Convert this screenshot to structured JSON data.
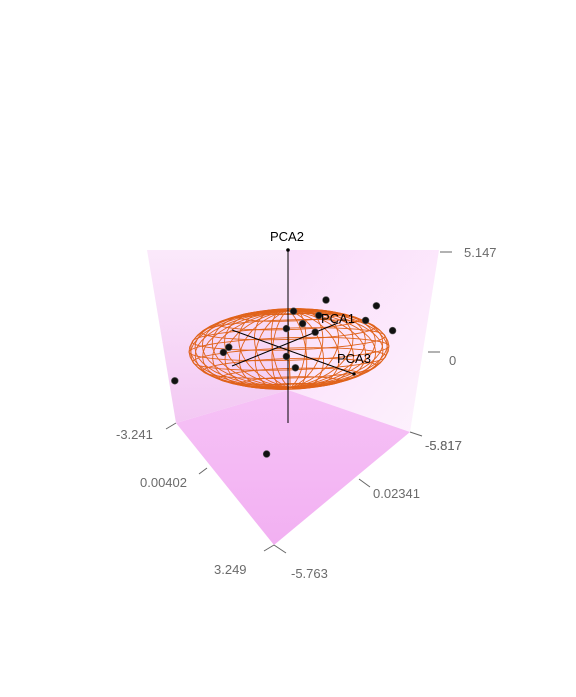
{
  "chart_data": {
    "type": "scatter",
    "subtype": "3d-scatter-with-ellipsoid",
    "axes": {
      "x": {
        "title": "PCA1",
        "ticks": [
          "-5.763",
          "0.02341",
          "-5.817"
        ]
      },
      "y": {
        "title": "PCA2",
        "ticks": [
          "5.147",
          "0",
          "-5.817"
        ]
      },
      "z": {
        "title": "PCA3",
        "ticks": [
          "3.249",
          "0.00402",
          "-3.241"
        ]
      }
    },
    "ellipsoid": {
      "color": "#e0621a",
      "style": "wireframe"
    },
    "points": [
      {
        "x": -1.6,
        "y": 0.6,
        "z": 0.2
      },
      {
        "x": -0.5,
        "y": 1.6,
        "z": -1.2
      },
      {
        "x": 0.1,
        "y": 0.5,
        "z": 0.4
      },
      {
        "x": 0.6,
        "y": 0.9,
        "z": -0.4
      },
      {
        "x": 0.9,
        "y": 0.2,
        "z": 1.1
      },
      {
        "x": 1.4,
        "y": -0.3,
        "z": 1.4
      },
      {
        "x": 2.1,
        "y": 0.7,
        "z": -0.6
      },
      {
        "x": 2.5,
        "y": -0.2,
        "z": 0.8
      },
      {
        "x": 2.2,
        "y": 0.1,
        "z": -1.3
      },
      {
        "x": -0.9,
        "y": -0.2,
        "z": 1.9
      },
      {
        "x": -2.2,
        "y": -0.6,
        "z": 2.0
      },
      {
        "x": 0.2,
        "y": -0.4,
        "z": 0.6
      },
      {
        "x": 0.3,
        "y": -0.7,
        "z": 0.3
      },
      {
        "x": 0.9,
        "y": 1.2,
        "z": -0.2
      },
      {
        "x": -0.2,
        "y": -3.2,
        "z": 0.9
      }
    ],
    "colors": {
      "box_tint": "#f3b8f3",
      "point": "#111111",
      "ellipsoid": "#e0621a"
    }
  }
}
